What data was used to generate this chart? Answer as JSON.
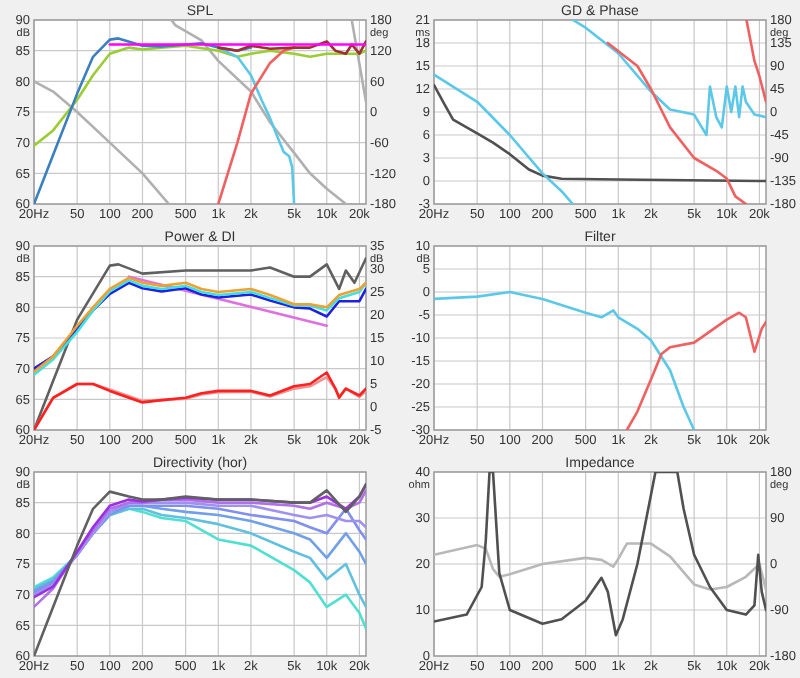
{
  "chart_data": [
    {
      "type": "line",
      "title": "SPL",
      "ylabel": "dB",
      "y2label": "deg",
      "log": "x",
      "grid": true,
      "xlim": [
        20,
        23000
      ],
      "ylim": [
        60,
        90
      ],
      "y2lim": [
        -180,
        180
      ],
      "xticks": [
        {
          "value": 20,
          "label": "20Hz"
        },
        50,
        100,
        200,
        500,
        {
          "value": 1000,
          "label": "1k"
        },
        {
          "value": 2000,
          "label": "2k"
        },
        {
          "value": 5000,
          "label": "5k"
        },
        {
          "value": 10000,
          "label": "10k"
        },
        {
          "value": 20000,
          "label": "20k"
        }
      ],
      "yticks": [
        60,
        65,
        70,
        75,
        80,
        85,
        90
      ],
      "y2ticks": [
        -180,
        -120,
        -60,
        0,
        60,
        120,
        180
      ],
      "series": [
        {
          "color": "#b0b0b0",
          "axis": "y2",
          "x": [
            20,
            30,
            50,
            100,
            200,
            350,
            360,
            370,
            400,
            700,
            1000,
            2000,
            3000,
            5000,
            7000,
            10000,
            15000,
            16000,
            17000,
            23000
          ],
          "values": [
            60,
            40,
            0,
            -60,
            -120,
            -180,
            null,
            180,
            170,
            140,
            100,
            40,
            -20,
            -80,
            -120,
            -150,
            -180,
            null,
            180,
            20
          ]
        },
        {
          "color": "#9acd32",
          "x": [
            20,
            30,
            50,
            70,
            100,
            150,
            200,
            300,
            500,
            1000,
            1500,
            2000,
            3000,
            5000,
            7000,
            10000,
            15000,
            20000,
            23000
          ],
          "values": [
            69.5,
            72,
            77,
            81,
            84.5,
            85.5,
            85.2,
            85.5,
            85.8,
            85,
            84,
            84.5,
            85,
            84.5,
            84,
            84.5,
            84.5,
            84.5,
            85
          ]
        },
        {
          "color": "#5bc8e8",
          "x": [
            1000,
            1500,
            2000,
            2500,
            3000,
            3500,
            4000,
            4500,
            4800,
            5000
          ],
          "values": [
            85.5,
            84,
            81,
            77,
            74,
            71,
            68.5,
            67.8,
            66,
            60
          ]
        },
        {
          "color": "#f06060",
          "x": [
            1000,
            1500,
            2000,
            3000,
            4000,
            5000
          ],
          "values": [
            60,
            70,
            78,
            83,
            85,
            85.5
          ]
        },
        {
          "color": "#3a7fc0",
          "x": [
            20,
            30,
            50,
            70,
            100,
            120,
            200,
            300,
            500,
            700,
            1000,
            1500,
            2000
          ],
          "values": [
            60,
            68,
            78,
            84,
            86.8,
            87,
            85.8,
            85.7,
            86,
            86.2,
            85.5,
            85,
            85.5
          ]
        },
        {
          "color": "#a03030",
          "x": [
            1000,
            1500,
            2000,
            3000,
            5000,
            7000,
            10000,
            12000,
            15000,
            17000,
            20000,
            23000
          ],
          "values": [
            85.5,
            85,
            85.8,
            85.3,
            85.5,
            85.5,
            86.5,
            85,
            84.5,
            86,
            84.5,
            86.5
          ]
        },
        {
          "color": "#ff00ff",
          "x": [
            100,
            23000
          ],
          "values": [
            86,
            86
          ]
        }
      ]
    },
    {
      "type": "line",
      "title": "GD & Phase",
      "ylabel": "ms",
      "y2label": "deg",
      "log": "x",
      "grid": true,
      "xlim": [
        20,
        23000
      ],
      "ylim": [
        -3,
        21
      ],
      "y2lim": [
        -180,
        180
      ],
      "xticks": [
        {
          "value": 20,
          "label": "20Hz"
        },
        50,
        100,
        200,
        500,
        {
          "value": 1000,
          "label": "1k"
        },
        {
          "value": 2000,
          "label": "2k"
        },
        {
          "value": 5000,
          "label": "5k"
        },
        {
          "value": 10000,
          "label": "10k"
        },
        {
          "value": 20000,
          "label": "20k"
        }
      ],
      "yticks": [
        -3,
        0,
        3,
        6,
        9,
        12,
        15,
        18,
        21
      ],
      "y2ticks": [
        -180,
        -135,
        -90,
        -45,
        0,
        45,
        90,
        135,
        180
      ],
      "series": [
        {
          "color": "#505050",
          "x": [
            20,
            25,
            30,
            40,
            50,
            70,
            100,
            150,
            200,
            300,
            1000,
            20000,
            23000
          ],
          "values": [
            12.5,
            10,
            8,
            7,
            6.2,
            5,
            3.5,
            1.5,
            0.7,
            0.3,
            0.2,
            0,
            0
          ]
        },
        {
          "color": "#5bc8e8",
          "axis": "y2",
          "x": [
            20,
            50,
            100,
            200,
            300,
            380,
            381,
            382,
            500,
            1000,
            2000,
            3000,
            5000,
            6500,
            7000,
            8000,
            9000,
            10000,
            11000,
            12000,
            13000,
            14000,
            15000,
            18000,
            23000
          ],
          "values": [
            73,
            20,
            -45,
            -120,
            -155,
            -180,
            null,
            180,
            165,
            115,
            40,
            5,
            -5,
            -45,
            50,
            -10,
            -30,
            50,
            0,
            50,
            -10,
            50,
            20,
            -5,
            -10
          ]
        },
        {
          "color": "#f06060",
          "axis": "y2",
          "x": [
            800,
            1500,
            2000,
            3000,
            5000,
            8000,
            10000,
            12000,
            15000,
            15100,
            15200,
            18000,
            20000,
            23000
          ],
          "values": [
            135,
            90,
            45,
            -30,
            -90,
            -115,
            -130,
            -165,
            -180,
            null,
            180,
            100,
            70,
            20
          ]
        }
      ]
    },
    {
      "type": "line",
      "title": "Power & DI",
      "ylabel": "dB",
      "y2label": "dB",
      "log": "x",
      "grid": true,
      "xlim": [
        20,
        23000
      ],
      "ylim": [
        60,
        90
      ],
      "y2lim": [
        -5,
        35
      ],
      "xticks": [
        {
          "value": 20,
          "label": "20Hz"
        },
        50,
        100,
        200,
        500,
        {
          "value": 1000,
          "label": "1k"
        },
        {
          "value": 2000,
          "label": "2k"
        },
        {
          "value": 5000,
          "label": "5k"
        },
        {
          "value": 10000,
          "label": "10k"
        },
        {
          "value": 20000,
          "label": "20k"
        }
      ],
      "yticks": [
        60,
        65,
        70,
        75,
        80,
        85,
        90
      ],
      "y2ticks": [
        -5,
        0,
        5,
        10,
        15,
        20,
        25,
        30,
        35
      ],
      "series": [
        {
          "color": "#606060",
          "x": [
            20,
            30,
            50,
            100,
            120,
            200,
            500,
            1000,
            2000,
            3000,
            5000,
            7000,
            10000,
            13000,
            15000,
            18000,
            23000
          ],
          "values": [
            60,
            68,
            78,
            86.8,
            87,
            85.5,
            86,
            86,
            86,
            86.5,
            85,
            85,
            87,
            83,
            86,
            84,
            88
          ]
        },
        {
          "color": "#e070e0",
          "x": [
            150,
            10000
          ],
          "values": [
            85,
            77
          ]
        },
        {
          "color": "#2020e0",
          "x": [
            20,
            30,
            50,
            70,
            100,
            150,
            200,
            300,
            500,
            700,
            1000,
            2000,
            3000,
            5000,
            7000,
            10000,
            13000,
            20000,
            23000
          ],
          "values": [
            70,
            72,
            76.5,
            79.5,
            82.2,
            84,
            83.1,
            82.6,
            83.1,
            82.1,
            81.6,
            82.1,
            81.1,
            80,
            79.8,
            78.5,
            81,
            81,
            83
          ]
        },
        {
          "color": "#40e0e0",
          "x": [
            20,
            30,
            50,
            70,
            100,
            150,
            200,
            300,
            500,
            700,
            1000,
            2000,
            3000,
            5000,
            7000,
            10000,
            13000,
            20000,
            23000
          ],
          "values": [
            69,
            71.5,
            76,
            79.5,
            82.6,
            84.4,
            83.5,
            83,
            83.5,
            82.5,
            82,
            82.5,
            81.5,
            80.3,
            80.3,
            79.5,
            81.5,
            82.5,
            84
          ]
        },
        {
          "color": "#f0a030",
          "x": [
            20,
            30,
            50,
            70,
            100,
            150,
            200,
            300,
            500,
            700,
            1000,
            2000,
            3000,
            5000,
            7000,
            10000,
            13000,
            20000,
            23000
          ],
          "values": [
            69.5,
            72,
            77,
            80,
            83,
            84.8,
            84,
            83.5,
            84,
            83,
            82.5,
            83,
            82,
            80.5,
            80.5,
            80,
            82,
            83,
            84
          ]
        },
        {
          "color": "#f09090",
          "axis": "y2",
          "x": [
            20,
            30,
            50,
            70,
            100,
            200,
            300,
            500,
            700,
            1000,
            2000,
            3000,
            5000,
            7000,
            10000,
            12000,
            13000,
            15000,
            20000,
            23000
          ],
          "values": [
            -5,
            2,
            5,
            5,
            3.8,
            1.3,
            1.5,
            1.8,
            2.7,
            3.2,
            3.3,
            2.3,
            4,
            4.5,
            6.5,
            4,
            2.2,
            4,
            2.2,
            3.5
          ]
        },
        {
          "color": "#ff2020",
          "axis": "y2",
          "x": [
            20,
            30,
            50,
            70,
            100,
            200,
            300,
            500,
            700,
            1000,
            2000,
            3000,
            5000,
            7000,
            10000,
            12000,
            13000,
            15000,
            20000,
            23000
          ],
          "values": [
            -5,
            2,
            5,
            5,
            3.5,
            1,
            1.5,
            2,
            3,
            3.5,
            3.5,
            2.5,
            4.5,
            5,
            7.5,
            4,
            2,
            4,
            2.5,
            4
          ]
        }
      ]
    },
    {
      "type": "line",
      "title": "Filter",
      "ylabel": "dB",
      "log": "x",
      "grid": true,
      "xlim": [
        20,
        23000
      ],
      "ylim": [
        -30,
        10
      ],
      "xticks": [
        {
          "value": 20,
          "label": "20Hz"
        },
        50,
        100,
        200,
        500,
        {
          "value": 1000,
          "label": "1k"
        },
        {
          "value": 2000,
          "label": "2k"
        },
        {
          "value": 5000,
          "label": "5k"
        },
        {
          "value": 10000,
          "label": "10k"
        },
        {
          "value": 20000,
          "label": "20k"
        }
      ],
      "yticks": [
        -30,
        -25,
        -20,
        -15,
        -10,
        -5,
        0,
        5,
        10
      ],
      "series": [
        {
          "color": "#5bc8e8",
          "x": [
            20,
            50,
            100,
            200,
            500,
            700,
            900,
            1000,
            1500,
            2000,
            3000,
            4000,
            5000
          ],
          "values": [
            -1.5,
            -1,
            0,
            -1.5,
            -4.5,
            -5.5,
            -4,
            -5.5,
            -8,
            -10.5,
            -17,
            -25,
            -30
          ]
        },
        {
          "color": "#f06060",
          "x": [
            1200,
            1500,
            2000,
            2500,
            3000,
            5000,
            10000,
            13000,
            15000,
            18000,
            21000,
            23000
          ],
          "values": [
            -30,
            -26,
            -19,
            -13.5,
            -12,
            -11,
            -6,
            -4.5,
            -5.5,
            -13,
            -8,
            -6.5
          ]
        }
      ]
    },
    {
      "type": "line",
      "title": "Directivity (hor)",
      "ylabel": "dB",
      "log": "x",
      "grid": true,
      "xlim": [
        20,
        23000
      ],
      "ylim": [
        60,
        90
      ],
      "xticks": [
        {
          "value": 20,
          "label": "20Hz"
        },
        50,
        100,
        200,
        500,
        {
          "value": 1000,
          "label": "1k"
        },
        {
          "value": 2000,
          "label": "2k"
        },
        {
          "value": 5000,
          "label": "5k"
        },
        {
          "value": 10000,
          "label": "10k"
        },
        {
          "value": 20000,
          "label": "20k"
        }
      ],
      "yticks": [
        60,
        65,
        70,
        75,
        80,
        85,
        90
      ],
      "series": [
        {
          "color": "#50e0d0",
          "x": [
            20,
            30,
            50,
            70,
            100,
            150,
            200,
            300,
            500,
            1000,
            2000,
            5000,
            7000,
            10000,
            15000,
            20000,
            23000
          ],
          "values": [
            71.2,
            72.8,
            76.5,
            80,
            83,
            84,
            83.5,
            82.5,
            82,
            79,
            78,
            74,
            72,
            68,
            70,
            67,
            64.5
          ]
        },
        {
          "color": "#60c0e0",
          "x": [
            20,
            30,
            50,
            70,
            100,
            150,
            200,
            300,
            500,
            1000,
            2000,
            5000,
            7000,
            10000,
            15000,
            20000,
            23000
          ],
          "values": [
            70.9,
            72.5,
            76.5,
            80,
            83,
            84,
            84,
            83,
            82.5,
            81.5,
            80,
            77,
            76,
            72.5,
            75,
            70,
            68
          ]
        },
        {
          "color": "#70a0e8",
          "x": [
            20,
            30,
            50,
            70,
            100,
            150,
            200,
            300,
            500,
            1000,
            2000,
            5000,
            7000,
            10000,
            15000,
            20000,
            23000
          ],
          "values": [
            70.6,
            72.2,
            76.5,
            80,
            83,
            84.5,
            84.5,
            84,
            83.5,
            83,
            82,
            80,
            79,
            76,
            80,
            77,
            75
          ]
        },
        {
          "color": "#8090f0",
          "x": [
            20,
            30,
            50,
            70,
            100,
            150,
            200,
            300,
            500,
            1000,
            2000,
            5000,
            7000,
            10000,
            15000,
            20000,
            23000
          ],
          "values": [
            70.3,
            71.9,
            76.5,
            80,
            83.5,
            84.5,
            84.5,
            84.5,
            84.5,
            84,
            83,
            82,
            81,
            80,
            84,
            80.5,
            79
          ]
        },
        {
          "color": "#a090f0",
          "x": [
            20,
            30,
            50,
            70,
            100,
            150,
            200,
            300,
            500,
            1000,
            2000,
            5000,
            7000,
            10000,
            15000,
            20000,
            23000
          ],
          "values": [
            70,
            71.6,
            76.5,
            80,
            83.5,
            85,
            85,
            85,
            85,
            84.5,
            84.5,
            83,
            82.5,
            83,
            82,
            82,
            81
          ]
        },
        {
          "color": "#b070e8",
          "x": [
            20,
            30,
            50,
            70,
            100,
            150,
            200,
            300,
            500,
            1000,
            2000,
            5000,
            7000,
            10000,
            15000,
            20000,
            23000
          ],
          "values": [
            68,
            71,
            77,
            80.5,
            84,
            85,
            85,
            85.5,
            85.5,
            85,
            85,
            84.5,
            84,
            85,
            84,
            85,
            87
          ]
        },
        {
          "color": "#9b30e0",
          "x": [
            20,
            30,
            50,
            70,
            100,
            150,
            200,
            300,
            500,
            1000,
            2000,
            5000,
            7000,
            10000,
            15000,
            20000,
            23000
          ],
          "values": [
            69.6,
            71.3,
            77,
            81,
            84.5,
            85.5,
            85.2,
            85.5,
            85.8,
            85.5,
            85.5,
            85,
            85,
            86,
            84,
            86,
            88
          ]
        },
        {
          "color": "#606060",
          "x": [
            20,
            30,
            50,
            70,
            100,
            150,
            200,
            300,
            500,
            1000,
            2000,
            5000,
            7000,
            10000,
            15000,
            20000,
            23000
          ],
          "values": [
            60,
            68,
            78,
            84,
            86.8,
            86,
            85.5,
            85.5,
            86,
            85.5,
            85.5,
            85,
            85,
            87,
            83.5,
            86,
            88
          ]
        }
      ]
    },
    {
      "type": "line",
      "title": "Impedance",
      "ylabel": "ohm",
      "y2label": "deg",
      "log": "x",
      "grid": true,
      "xlim": [
        20,
        23000
      ],
      "ylim": [
        0,
        40
      ],
      "y2lim": [
        -180,
        180
      ],
      "xticks": [
        {
          "value": 20,
          "label": "20Hz"
        },
        50,
        100,
        200,
        500,
        {
          "value": 1000,
          "label": "1k"
        },
        {
          "value": 2000,
          "label": "2k"
        },
        {
          "value": 5000,
          "label": "5k"
        },
        {
          "value": 10000,
          "label": "10k"
        },
        {
          "value": 20000,
          "label": "20k"
        }
      ],
      "yticks": [
        0,
        10,
        20,
        30,
        40
      ],
      "y2ticks": [
        -180,
        -90,
        0,
        90,
        180
      ],
      "series": [
        {
          "color": "#b8b8b8",
          "axis": "y2",
          "x": [
            20,
            50,
            60,
            70,
            80,
            100,
            200,
            500,
            700,
            900,
            1000,
            1200,
            2000,
            3000,
            5000,
            7000,
            10000,
            15000,
            20000,
            23000
          ],
          "values": [
            18,
            37,
            30,
            -10,
            -25,
            -20,
            0,
            12,
            8,
            -5,
            10,
            40,
            40,
            15,
            -40,
            -50,
            -45,
            -25,
            0,
            -50
          ]
        },
        {
          "color": "#505050",
          "x": [
            20,
            40,
            55,
            60,
            65,
            70,
            80,
            100,
            200,
            300,
            500,
            700,
            800,
            950,
            1100,
            1500,
            2000,
            2200,
            3500,
            4000,
            5000,
            7000,
            10000,
            15000,
            18000,
            19500,
            21000,
            23000
          ],
          "values": [
            7.5,
            9,
            15,
            25,
            40,
            40,
            18,
            10,
            7,
            8,
            12,
            17,
            14,
            4.5,
            8,
            20,
            35,
            40,
            40,
            32,
            22,
            15,
            10,
            9,
            11,
            22,
            14,
            10
          ]
        }
      ]
    }
  ]
}
